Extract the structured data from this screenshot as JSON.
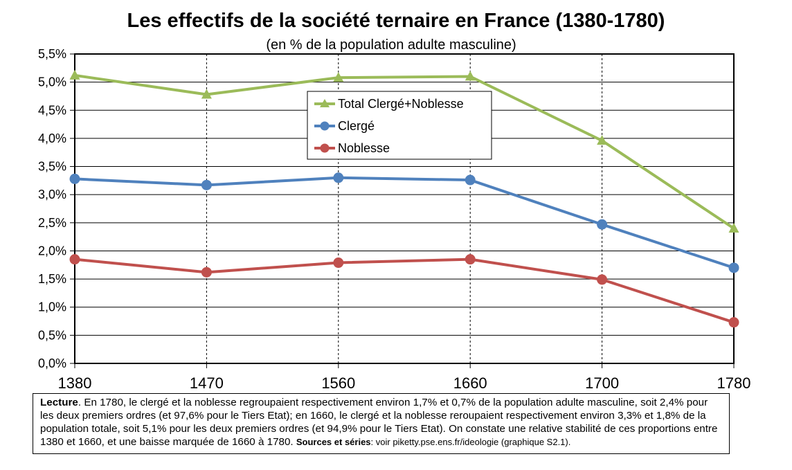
{
  "chart_data": {
    "type": "line",
    "title": "Les effectifs de la société ternaire en France (1380-1780)",
    "subtitle": "(en % de la population adulte masculine)",
    "categories": [
      "1380",
      "1470",
      "1560",
      "1660",
      "1700",
      "1780"
    ],
    "y_tick_labels": [
      "0,0%",
      "0,5%",
      "1,0%",
      "1,5%",
      "2,0%",
      "2,5%",
      "3,0%",
      "3,5%",
      "4,0%",
      "4,5%",
      "5,0%",
      "5,5%"
    ],
    "ylim": [
      0,
      5.5
    ],
    "y_unit": "%",
    "grid": "horizontal gridlines every 0.5; dashed vertical lines at categories",
    "legend_position": "upper center",
    "series": [
      {
        "name": "Total Clergé+Noblesse",
        "color": "#9bbb59",
        "marker": "triangle",
        "values": [
          5.12,
          4.78,
          5.08,
          5.1,
          3.96,
          2.4
        ]
      },
      {
        "name": "Clergé",
        "color": "#4f81bd",
        "marker": "circle",
        "values": [
          3.28,
          3.17,
          3.3,
          3.26,
          2.47,
          1.7
        ]
      },
      {
        "name": "Noblesse",
        "color": "#c0504d",
        "marker": "circle",
        "values": [
          1.85,
          1.62,
          1.79,
          1.85,
          1.49,
          0.73
        ]
      }
    ]
  },
  "note": {
    "lead": "Lecture",
    "body": ". En 1780, le clergé et la noblesse regroupaient respectivement environ 1,7% et 0,7% de la population adulte masculine, soit 2,4% pour les deux premiers ordres (et 97,6% pour le Tiers Etat); en 1660, le clergé et la noblesse reroupaient respectivement environ 3,3% et 1,8% de la population totale, soit 5,1% pour les deux premiers ordres (et 94,9% pour le Tiers Etat). On constate une relative stabilité de ces proportions entre 1380 et 1660, et une baisse marquée de 1660 à 1780. ",
    "sources_label": "Sources et séries",
    "sources_text": ": voir piketty.pse.ens.fr/ideologie (graphique S2.1)."
  }
}
